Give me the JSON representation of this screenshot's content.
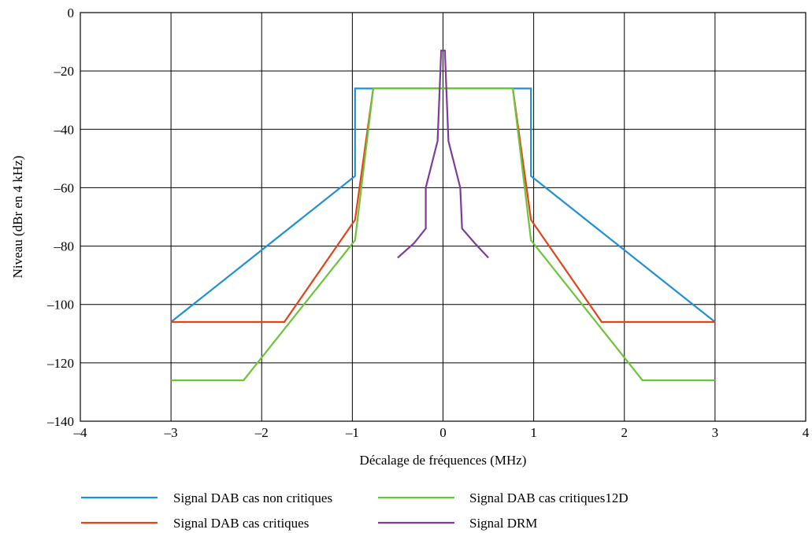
{
  "chart_data": {
    "type": "line",
    "xlabel": "Décalage de fréquences (MHz)",
    "ylabel": "Niveau (dBr en 4 kHz)",
    "xlim": [
      -4,
      4
    ],
    "ylim": [
      -140,
      0
    ],
    "xticks": [
      -4,
      -3,
      -2,
      -1,
      0,
      1,
      2,
      3,
      4
    ],
    "yticks": [
      0,
      -20,
      -40,
      -60,
      -80,
      -100,
      -120,
      -140
    ],
    "xtick_labels": [
      "–4",
      "–3",
      "–2",
      "–1",
      "0",
      "1",
      "2",
      "3",
      "4"
    ],
    "ytick_labels": [
      "0",
      "–20",
      "–40",
      "–60",
      "–80",
      "–100",
      "–120",
      "–140"
    ],
    "grid": true,
    "legend_position": "bottom",
    "series": [
      {
        "name": "Signal DAB cas non critiques",
        "color": "#1f8fd6",
        "x": [
          -3.0,
          -0.97,
          -0.97,
          0.97,
          0.97,
          3.0
        ],
        "y": [
          -106,
          -56,
          -26,
          -26,
          -56,
          -106
        ]
      },
      {
        "name": "Signal DAB cas critiques",
        "color": "#e2431b",
        "x": [
          -3.0,
          -1.75,
          -0.97,
          -0.77,
          0.77,
          0.97,
          1.75,
          3.0
        ],
        "y": [
          -106,
          -106,
          -71,
          -26,
          -26,
          -71,
          -106,
          -106
        ]
      },
      {
        "name": "Signal DAB cas critiques12D",
        "color": "#6cc43a",
        "x": [
          -3.0,
          -2.2,
          -0.97,
          -0.77,
          0.77,
          0.97,
          2.2,
          3.0
        ],
        "y": [
          -126,
          -126,
          -78,
          -26,
          -26,
          -78,
          -126,
          -126
        ]
      },
      {
        "name": "Signal DRM",
        "color": "#7b3c9a",
        "x": [
          -0.5,
          -0.32,
          -0.19,
          -0.19,
          -0.06,
          -0.02,
          0.02,
          0.06,
          0.19,
          0.21,
          0.35,
          0.5
        ],
        "y": [
          -84,
          -79,
          -74,
          -60,
          -44,
          -13,
          -13,
          -44,
          -60,
          -74,
          -79,
          -84
        ]
      }
    ]
  }
}
